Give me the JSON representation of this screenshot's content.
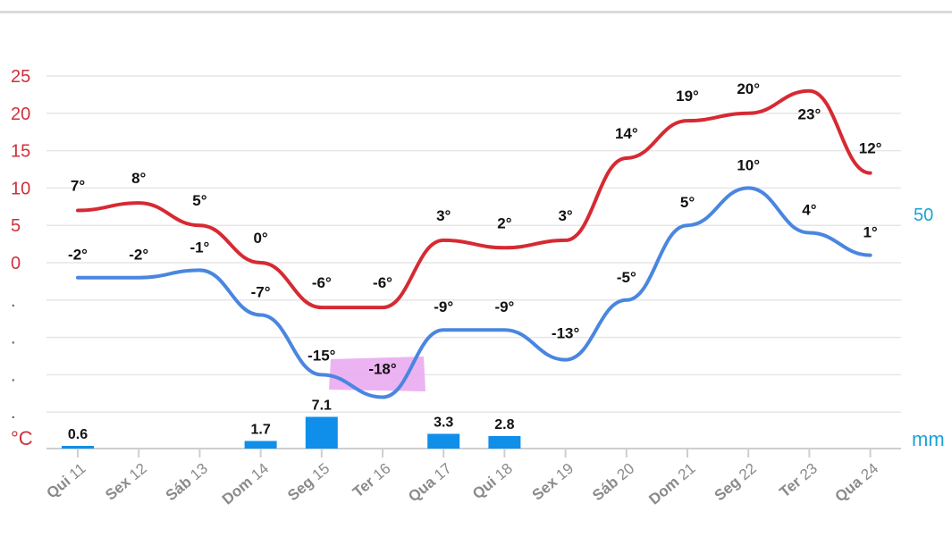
{
  "chart_data": {
    "type": "line",
    "categories": [
      {
        "day": "Qui",
        "num": "11"
      },
      {
        "day": "Sex",
        "num": "12"
      },
      {
        "day": "Sáb",
        "num": "13"
      },
      {
        "day": "Dom",
        "num": "14"
      },
      {
        "day": "Seg",
        "num": "15"
      },
      {
        "day": "Ter",
        "num": "16"
      },
      {
        "day": "Qua",
        "num": "17"
      },
      {
        "day": "Qui",
        "num": "18"
      },
      {
        "day": "Sex",
        "num": "19"
      },
      {
        "day": "Sáb",
        "num": "20"
      },
      {
        "day": "Dom",
        "num": "21"
      },
      {
        "day": "Seg",
        "num": "22"
      },
      {
        "day": "Ter",
        "num": "23"
      },
      {
        "day": "Qua",
        "num": "24"
      }
    ],
    "series": [
      {
        "kind": "line",
        "values": [
          7,
          8,
          5,
          0,
          -6,
          -6,
          3,
          2,
          3,
          14,
          19,
          20,
          23,
          12
        ],
        "color": "#d62a33"
      },
      {
        "kind": "line",
        "values": [
          -2,
          -2,
          -1,
          -7,
          -15,
          -18,
          -9,
          -9,
          -13,
          -5,
          5,
          10,
          4,
          1
        ],
        "color": "#4a86e0"
      },
      {
        "kind": "bar",
        "values": [
          0.6,
          0,
          0,
          1.7,
          7.1,
          0,
          3.3,
          2.8,
          0,
          0,
          0,
          0,
          0,
          0
        ],
        "color": "#0f8fea"
      }
    ],
    "temperature_labels": {
      "max": [
        "7°",
        "8°",
        "5°",
        "0°",
        "-6°",
        "-6°",
        "3°",
        "2°",
        "3°",
        "14°",
        "19°",
        "20°",
        "23°",
        "12°"
      ],
      "min": [
        "-2°",
        "-2°",
        "-1°",
        "-7°",
        "-15°",
        "-18°",
        "-9°",
        "-9°",
        "-13°",
        "-5°",
        "5°",
        "10°",
        "4°",
        "1°"
      ]
    },
    "precip_labels": [
      "0.6",
      "",
      "",
      "1.7",
      "7.1",
      "",
      "3.3",
      "2.8",
      "",
      "",
      "",
      "",
      "",
      ""
    ],
    "y_left": {
      "ticks": [
        "25",
        "20",
        "15",
        "10",
        "5",
        "0",
        ".",
        ".",
        ".",
        "."
      ],
      "unit": "°C",
      "color": "#d0303a"
    },
    "y_right": {
      "tick": "50",
      "unit": "mm",
      "color": "#1aa3d6"
    },
    "ylim": [
      -25,
      25
    ],
    "grid": true,
    "highlight": {
      "color": "#e9a6f0"
    }
  }
}
